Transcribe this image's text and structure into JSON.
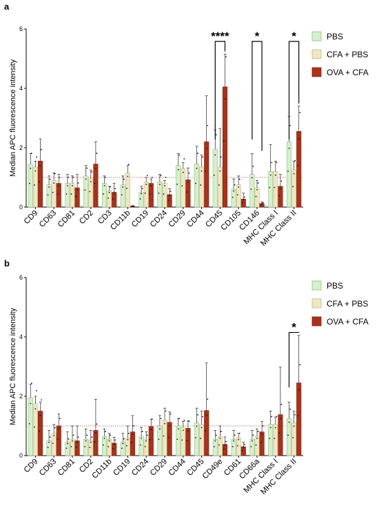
{
  "colors": {
    "PBS": "#d6efcc",
    "PBS_edge": "#8fbf80",
    "CFA + PBS": "#efe6c4",
    "CFA + PBS_edge": "#c3b88e",
    "OVA + CFA": "#a8331a",
    "OVA + CFA_edge": "#7a200d",
    "reference_line": "#c0504d"
  },
  "chart_data": [
    {
      "panel": "a",
      "type": "bar",
      "ylabel": "Median APC fluorescence intensity",
      "ylim": [
        0,
        6
      ],
      "yticks": [
        0,
        2,
        4,
        6
      ],
      "reference_line": 1,
      "legend_position": "top-right",
      "categories": [
        "CD9",
        "CD63",
        "CD81",
        "CD2",
        "CD3",
        "CD11b",
        "CD19",
        "CD24",
        "CD29",
        "CD44",
        "CD45",
        "CD105",
        "CD146",
        "MHC Class I",
        "MHC Class II"
      ],
      "series": [
        {
          "name": "PBS",
          "values": [
            1.45,
            0.75,
            0.8,
            1.05,
            0.8,
            0.75,
            0.5,
            0.85,
            1.4,
            1.45,
            1.95,
            0.6,
            1.1,
            1.2,
            2.2
          ],
          "errors": [
            0.35,
            0.3,
            0.3,
            0.35,
            0.25,
            0.3,
            0.2,
            0.25,
            0.4,
            0.6,
            0.65,
            0.35,
            0.7,
            0.9,
            0.85
          ]
        },
        {
          "name": "CFA + PBS",
          "values": [
            1.35,
            0.9,
            0.8,
            0.95,
            0.55,
            1.15,
            0.85,
            0.8,
            1.3,
            1.35,
            1.35,
            0.75,
            0.65,
            1.2,
            1.25
          ],
          "errors": [
            0.2,
            0.25,
            0.25,
            0.3,
            0.15,
            0.25,
            0.15,
            0.1,
            0.2,
            0.4,
            1.3,
            0.3,
            0.25,
            0.35,
            0.3
          ]
        },
        {
          "name": "OVA + CFA",
          "values": [
            1.55,
            0.8,
            0.65,
            1.45,
            0.5,
            0.03,
            0.8,
            0.42,
            0.92,
            2.2,
            4.05,
            0.27,
            0.12,
            0.7,
            2.55
          ],
          "errors": [
            0.75,
            0.3,
            0.45,
            0.75,
            0.3,
            0.02,
            0.15,
            0.2,
            0.4,
            1.55,
            1.1,
            0.2,
            0.05,
            0.4,
            0.85
          ]
        }
      ],
      "significance": [
        {
          "category": "CD45",
          "label": "****"
        },
        {
          "category": "CD146",
          "label": "*"
        },
        {
          "category": "MHC Class II",
          "label": "*"
        }
      ]
    },
    {
      "panel": "b",
      "type": "bar",
      "ylabel": "Median APC fluorescence intensity",
      "ylim": [
        0,
        6
      ],
      "yticks": [
        0,
        2,
        4,
        6
      ],
      "reference_line": 1,
      "legend_position": "top-right",
      "categories": [
        "CD9",
        "CD63",
        "CD81",
        "CD2",
        "CD11b",
        "CD19",
        "CD24",
        "CD29",
        "CD44",
        "CD45",
        "CD49e",
        "CD61",
        "CD66a",
        "MHC Class I",
        "MHC Class II"
      ],
      "series": [
        {
          "name": "PBS",
          "values": [
            1.95,
            0.5,
            0.45,
            0.55,
            0.65,
            0.45,
            0.65,
            1.0,
            1.0,
            1.1,
            0.55,
            0.55,
            0.55,
            1.05,
            1.25
          ],
          "errors": [
            0.45,
            0.35,
            0.35,
            0.35,
            0.25,
            0.3,
            0.3,
            0.35,
            0.25,
            0.5,
            0.3,
            0.3,
            0.3,
            0.45,
            0.55
          ]
        },
        {
          "name": "CFA + PBS",
          "values": [
            1.75,
            0.75,
            0.55,
            0.5,
            0.55,
            0.6,
            0.55,
            1.2,
            0.95,
            1.05,
            0.65,
            0.6,
            0.65,
            1.05,
            1.1
          ],
          "errors": [
            0.25,
            0.3,
            0.45,
            0.35,
            0.2,
            0.4,
            0.25,
            0.4,
            0.2,
            0.45,
            0.35,
            0.15,
            0.25,
            0.25,
            0.4
          ]
        },
        {
          "name": "OVA + CFA",
          "values": [
            1.5,
            1.0,
            0.5,
            0.85,
            0.42,
            0.8,
            0.98,
            1.12,
            0.92,
            1.52,
            0.38,
            0.3,
            0.8,
            1.38,
            2.45
          ],
          "errors": [
            0.3,
            0.4,
            0.5,
            1.05,
            0.2,
            0.55,
            0.25,
            0.35,
            0.25,
            1.6,
            0.25,
            0.15,
            0.35,
            1.6,
            1.6
          ]
        }
      ],
      "significance": [
        {
          "category": "MHC Class II",
          "label": "*"
        }
      ]
    }
  ]
}
